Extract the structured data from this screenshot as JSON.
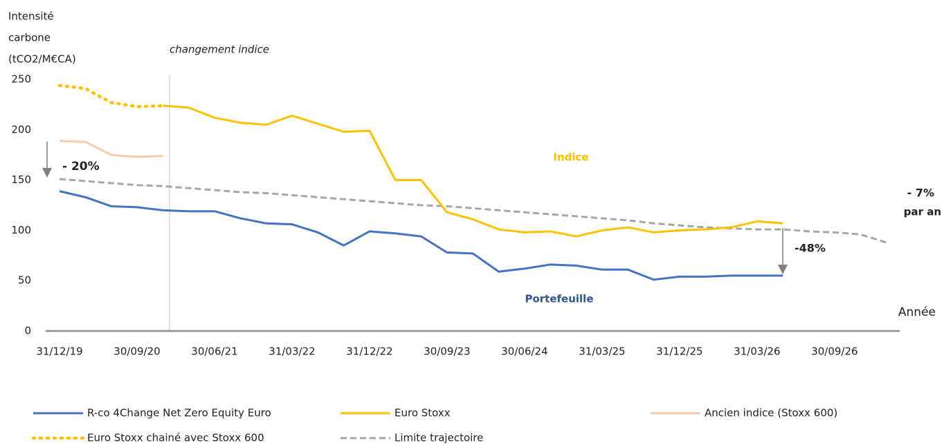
{
  "chart_data": {
    "type": "line",
    "ylabel": [
      "Intensité",
      "carbone",
      "(tCO2/M€CA)"
    ],
    "xlabel": "Année",
    "categories": [
      "31/12/19",
      null,
      null,
      "30/09/20",
      null,
      null,
      "30/06/21",
      null,
      null,
      "31/03/22",
      null,
      null,
      "31/12/22",
      null,
      null,
      "30/09/23",
      null,
      null,
      "30/06/24",
      null,
      null,
      "31/03/25",
      null,
      null,
      "31/12/25",
      null,
      null,
      "31/03/26",
      null,
      null,
      "30/09/26",
      null,
      null
    ],
    "ylim": [
      0,
      250
    ],
    "yticks": [
      0,
      50,
      100,
      150,
      200,
      250
    ],
    "grid": false,
    "series": [
      {
        "name": "R-co 4Change Net Zero Equity Euro",
        "color": "#4472c4",
        "style": "solid",
        "values": [
          139,
          133,
          124,
          123,
          120,
          119,
          119,
          112,
          107,
          106,
          98,
          85,
          99,
          97,
          94,
          78,
          77,
          59,
          62,
          66,
          65,
          61,
          61,
          51,
          54,
          54,
          55,
          55,
          55,
          null,
          null,
          null,
          null
        ]
      },
      {
        "name": "Euro Stoxx",
        "color": "#ffc000",
        "style": "solid",
        "values": [
          null,
          null,
          null,
          null,
          224,
          222,
          212,
          207,
          205,
          214,
          206,
          198,
          199,
          150,
          150,
          118,
          111,
          101,
          98,
          99,
          94,
          100,
          103,
          98,
          100,
          101,
          103,
          109,
          107,
          null,
          null,
          null,
          null
        ]
      },
      {
        "name": "Ancien indice (Stoxx 600)",
        "color": "#f8cbad",
        "style": "solid",
        "values": [
          189,
          188,
          175,
          173,
          174,
          null,
          null,
          null,
          null,
          null,
          null,
          null,
          null,
          null,
          null,
          null,
          null,
          null,
          null,
          null,
          null,
          null,
          null,
          null,
          null,
          null,
          null,
          null,
          null,
          null,
          null,
          null,
          null
        ]
      },
      {
        "name": "Euro Stoxx chainé avec Stoxx 600",
        "color": "#ffc000",
        "style": "dotted",
        "values": [
          244,
          241,
          227,
          223,
          224,
          null,
          null,
          null,
          null,
          null,
          null,
          null,
          null,
          null,
          null,
          null,
          null,
          null,
          null,
          null,
          null,
          null,
          null,
          null,
          null,
          null,
          null,
          null,
          null,
          null,
          null,
          null,
          null
        ]
      },
      {
        "name": "Limite trajectoire",
        "color": "#a6a6a6",
        "style": "dashed",
        "values": [
          151,
          149,
          147,
          145,
          144,
          142,
          140,
          138,
          137,
          135,
          133,
          131,
          129,
          127,
          125,
          124,
          122,
          120,
          118,
          116,
          114,
          112,
          110,
          107,
          105,
          103,
          102,
          101,
          101,
          99,
          98,
          96,
          88
        ]
      }
    ],
    "annotations": [
      "changement indice",
      "Indice",
      "Portefeuille",
      "- 20%",
      "-48%",
      "- 7%",
      "par an"
    ]
  }
}
